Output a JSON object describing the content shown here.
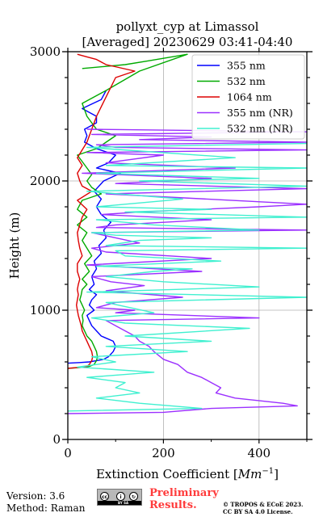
{
  "chart_data": {
    "type": "line",
    "title_line1": "pollyxt_cyp at Limassol",
    "title_line2": "[Averaged] 20230629 03:41-04:40",
    "xlabel": "Extinction Coefficient [Mm^-1]",
    "ylabel": "Height (m)",
    "xlim": [
      0,
      500
    ],
    "ylim": [
      0,
      3000
    ],
    "xticks": [
      "0",
      "200",
      "400"
    ],
    "yticks": [
      "0",
      "1000",
      "2000",
      "3000"
    ],
    "grid": true,
    "legend_position": "top-right",
    "series": [
      {
        "name": "355 nm",
        "color": "#0000ff",
        "x": [
          0,
          25,
          45,
          60,
          75,
          85,
          95,
          100,
          95,
          70,
          60,
          50,
          45,
          40,
          55,
          45,
          50,
          60,
          45,
          55,
          50,
          60,
          55,
          70,
          65,
          80,
          75,
          90,
          70,
          60,
          70,
          55,
          75,
          110,
          60,
          85,
          100,
          60,
          35,
          40,
          35,
          60,
          60,
          30,
          70,
          80
        ],
        "y": [
          590,
          595,
          600,
          610,
          620,
          640,
          680,
          720,
          760,
          800,
          840,
          880,
          920,
          960,
          1000,
          1040,
          1080,
          1120,
          1160,
          1200,
          1260,
          1320,
          1380,
          1440,
          1500,
          1560,
          1620,
          1680,
          1740,
          1800,
          1860,
          1920,
          2000,
          2060,
          2100,
          2140,
          2200,
          2250,
          2300,
          2350,
          2400,
          2450,
          2500,
          2560,
          2630,
          2700
        ]
      },
      {
        "name": "532 nm",
        "color": "#00aa00",
        "x": [
          0,
          20,
          35,
          45,
          55,
          60,
          62,
          60,
          55,
          50,
          40,
          35,
          30,
          32,
          30,
          35,
          30,
          25,
          28,
          30,
          40,
          30,
          45,
          35,
          50,
          40,
          30,
          40,
          20,
          40,
          20,
          30,
          70,
          50,
          40,
          50,
          40,
          30,
          20,
          60,
          80,
          100,
          60,
          50,
          40,
          30,
          80,
          150,
          250,
          170,
          120,
          30
        ],
        "y": [
          550,
          555,
          560,
          565,
          580,
          610,
          640,
          680,
          720,
          760,
          800,
          840,
          880,
          920,
          960,
          1000,
          1040,
          1080,
          1120,
          1160,
          1200,
          1240,
          1300,
          1360,
          1420,
          1480,
          1540,
          1600,
          1660,
          1720,
          1780,
          1850,
          1900,
          1950,
          2000,
          2050,
          2100,
          2150,
          2200,
          2250,
          2300,
          2350,
          2400,
          2450,
          2500,
          2600,
          2700,
          2850,
          2980,
          2930,
          2900,
          2870
        ]
      },
      {
        "name": "1064 nm",
        "color": "#dd0000",
        "x": [
          0,
          15,
          30,
          40,
          45,
          50,
          52,
          50,
          45,
          40,
          35,
          30,
          28,
          25,
          22,
          20,
          18,
          20,
          22,
          20,
          22,
          25,
          20,
          20,
          30,
          25,
          22,
          20,
          25,
          30,
          40,
          20,
          50,
          30,
          25,
          20,
          30,
          20,
          40,
          60,
          100,
          140,
          80,
          60,
          40,
          20
        ],
        "y": [
          550,
          555,
          560,
          565,
          580,
          610,
          640,
          680,
          720,
          760,
          800,
          840,
          880,
          920,
          960,
          1000,
          1040,
          1080,
          1120,
          1160,
          1200,
          1240,
          1300,
          1360,
          1420,
          1480,
          1540,
          1600,
          1660,
          1720,
          1780,
          1850,
          1920,
          1960,
          2000,
          2060,
          2120,
          2180,
          2300,
          2500,
          2800,
          2850,
          2900,
          2940,
          2960,
          2980
        ]
      },
      {
        "name": "355 (NR)",
        "color": "#9b30ff",
        "x": [
          0,
          200,
          300,
          480,
          450,
          350,
          310,
          320,
          300,
          280,
          250,
          230,
          200,
          180,
          170,
          150,
          140,
          120,
          100,
          80,
          400,
          100,
          140,
          60,
          100,
          240,
          80,
          160,
          90,
          50,
          280,
          40,
          300,
          80,
          50,
          150,
          100,
          50,
          500,
          60,
          100,
          300,
          70,
          150,
          400,
          500,
          80,
          500,
          100,
          300,
          30,
          350,
          80,
          200,
          40,
          500,
          100,
          60,
          500,
          150,
          300,
          50,
          500,
          40
        ],
        "y": [
          200,
          210,
          240,
          260,
          280,
          320,
          360,
          400,
          440,
          480,
          520,
          580,
          620,
          680,
          720,
          760,
          800,
          840,
          880,
          920,
          940,
          980,
          1000,
          1020,
          1060,
          1100,
          1150,
          1190,
          1220,
          1260,
          1300,
          1350,
          1400,
          1450,
          1480,
          1520,
          1560,
          1600,
          1620,
          1640,
          1660,
          1700,
          1740,
          1760,
          1800,
          1820,
          1900,
          1940,
          1980,
          2020,
          2060,
          2100,
          2140,
          2200,
          2220,
          2240,
          2260,
          2280,
          2300,
          2320,
          2340,
          2360,
          2380,
          2400
        ]
      },
      {
        "name": "532 (NR)",
        "color": "#40f0d0",
        "x": [
          0,
          280,
          150,
          60,
          150,
          100,
          120,
          40,
          180,
          20,
          100,
          50,
          250,
          80,
          300,
          120,
          380,
          120,
          50,
          180,
          130,
          80,
          500,
          40,
          400,
          200,
          80,
          180,
          260,
          60,
          320,
          120,
          100,
          500,
          80,
          150,
          300,
          100,
          50,
          400,
          180,
          60,
          500,
          120,
          300,
          60,
          240,
          40,
          500,
          150,
          400,
          60,
          500,
          80,
          350,
          40,
          500
        ],
        "y": [
          220,
          240,
          280,
          320,
          360,
          400,
          440,
          480,
          520,
          560,
          600,
          640,
          680,
          720,
          760,
          800,
          860,
          900,
          940,
          980,
          1020,
          1060,
          1100,
          1140,
          1180,
          1220,
          1260,
          1300,
          1320,
          1340,
          1380,
          1420,
          1460,
          1480,
          1500,
          1540,
          1560,
          1580,
          1600,
          1620,
          1660,
          1700,
          1720,
          1760,
          1780,
          1800,
          1860,
          1920,
          1960,
          2000,
          2020,
          2060,
          2100,
          2120,
          2180,
          2260,
          2290
        ]
      }
    ]
  },
  "legend": {
    "items": [
      {
        "label": "355 nm",
        "color": "#0000ff"
      },
      {
        "label": "532 nm",
        "color": "#00aa00"
      },
      {
        "label": "1064 nm",
        "color": "#dd0000"
      },
      {
        "label": "355 nm (NR)",
        "color": "#9b30ff"
      },
      {
        "label": "532 nm (NR)",
        "color": "#40f0d0"
      }
    ]
  },
  "footer": {
    "version": "Version: 3.6",
    "method": "Method: Raman",
    "prelim_line1": "Preliminary",
    "prelim_line2": "Results.",
    "copyright_line1": "© TROPOS & ECoE 2023.",
    "copyright_line2": "CC BY SA 4.0 License.",
    "cc_text": "BY SA"
  }
}
